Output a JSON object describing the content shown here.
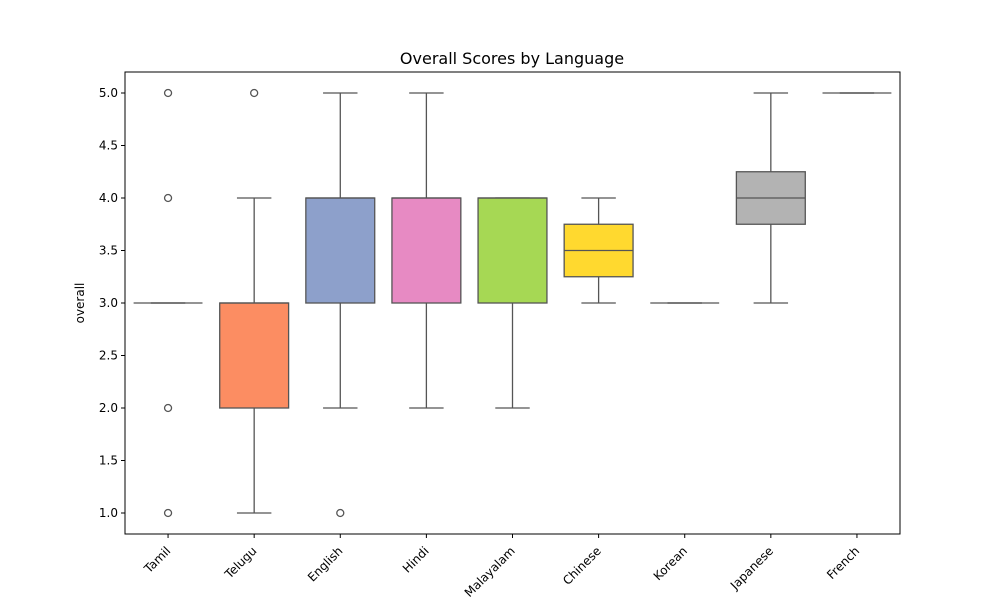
{
  "chart_data": {
    "type": "box",
    "title": "Overall Scores by Language",
    "xlabel": "",
    "ylabel": "overall",
    "ylim": [
      0.8,
      5.2
    ],
    "yticks": [
      1.0,
      1.5,
      2.0,
      2.5,
      3.0,
      3.5,
      4.0,
      4.5,
      5.0
    ],
    "ytick_labels": [
      "1.0",
      "1.5",
      "2.0",
      "2.5",
      "3.0",
      "3.5",
      "4.0",
      "4.5",
      "5.0"
    ],
    "grid": false,
    "categories": [
      "Tamil",
      "Telugu",
      "English",
      "Hindi",
      "Malayalam",
      "Chinese",
      "Korean",
      "Japanese",
      "French"
    ],
    "boxes": [
      {
        "category": "Tamil",
        "whisker_low": 3.0,
        "q1": 3.0,
        "median": 3.0,
        "q3": 3.0,
        "whisker_high": 3.0,
        "outliers": [
          1.0,
          2.0,
          4.0,
          5.0
        ],
        "color": "#66c2a5"
      },
      {
        "category": "Telugu",
        "whisker_low": 1.0,
        "q1": 2.0,
        "median": 3.0,
        "q3": 3.0,
        "whisker_high": 4.0,
        "outliers": [
          5.0
        ],
        "color": "#fc8d62"
      },
      {
        "category": "English",
        "whisker_low": 2.0,
        "q1": 3.0,
        "median": 4.0,
        "q3": 4.0,
        "whisker_high": 5.0,
        "outliers": [
          1.0
        ],
        "color": "#8da0cb"
      },
      {
        "category": "Hindi",
        "whisker_low": 2.0,
        "q1": 3.0,
        "median": 4.0,
        "q3": 4.0,
        "whisker_high": 5.0,
        "outliers": [],
        "color": "#e78ac3"
      },
      {
        "category": "Malayalam",
        "whisker_low": 2.0,
        "q1": 3.0,
        "median": 4.0,
        "q3": 4.0,
        "whisker_high": 4.0,
        "outliers": [],
        "color": "#a6d854"
      },
      {
        "category": "Chinese",
        "whisker_low": 3.0,
        "q1": 3.25,
        "median": 3.5,
        "q3": 3.75,
        "whisker_high": 4.0,
        "outliers": [],
        "color": "#ffd92f"
      },
      {
        "category": "Korean",
        "whisker_low": 3.0,
        "q1": 3.0,
        "median": 3.0,
        "q3": 3.0,
        "whisker_high": 3.0,
        "outliers": [],
        "color": "#e5c494"
      },
      {
        "category": "Japanese",
        "whisker_low": 3.0,
        "q1": 3.75,
        "median": 4.0,
        "q3": 4.25,
        "whisker_high": 5.0,
        "outliers": [],
        "color": "#b3b3b3"
      },
      {
        "category": "French",
        "whisker_low": 5.0,
        "q1": 5.0,
        "median": 5.0,
        "q3": 5.0,
        "whisker_high": 5.0,
        "outliers": [],
        "color": "#66c2a5"
      }
    ],
    "line_color": "#555555"
  }
}
